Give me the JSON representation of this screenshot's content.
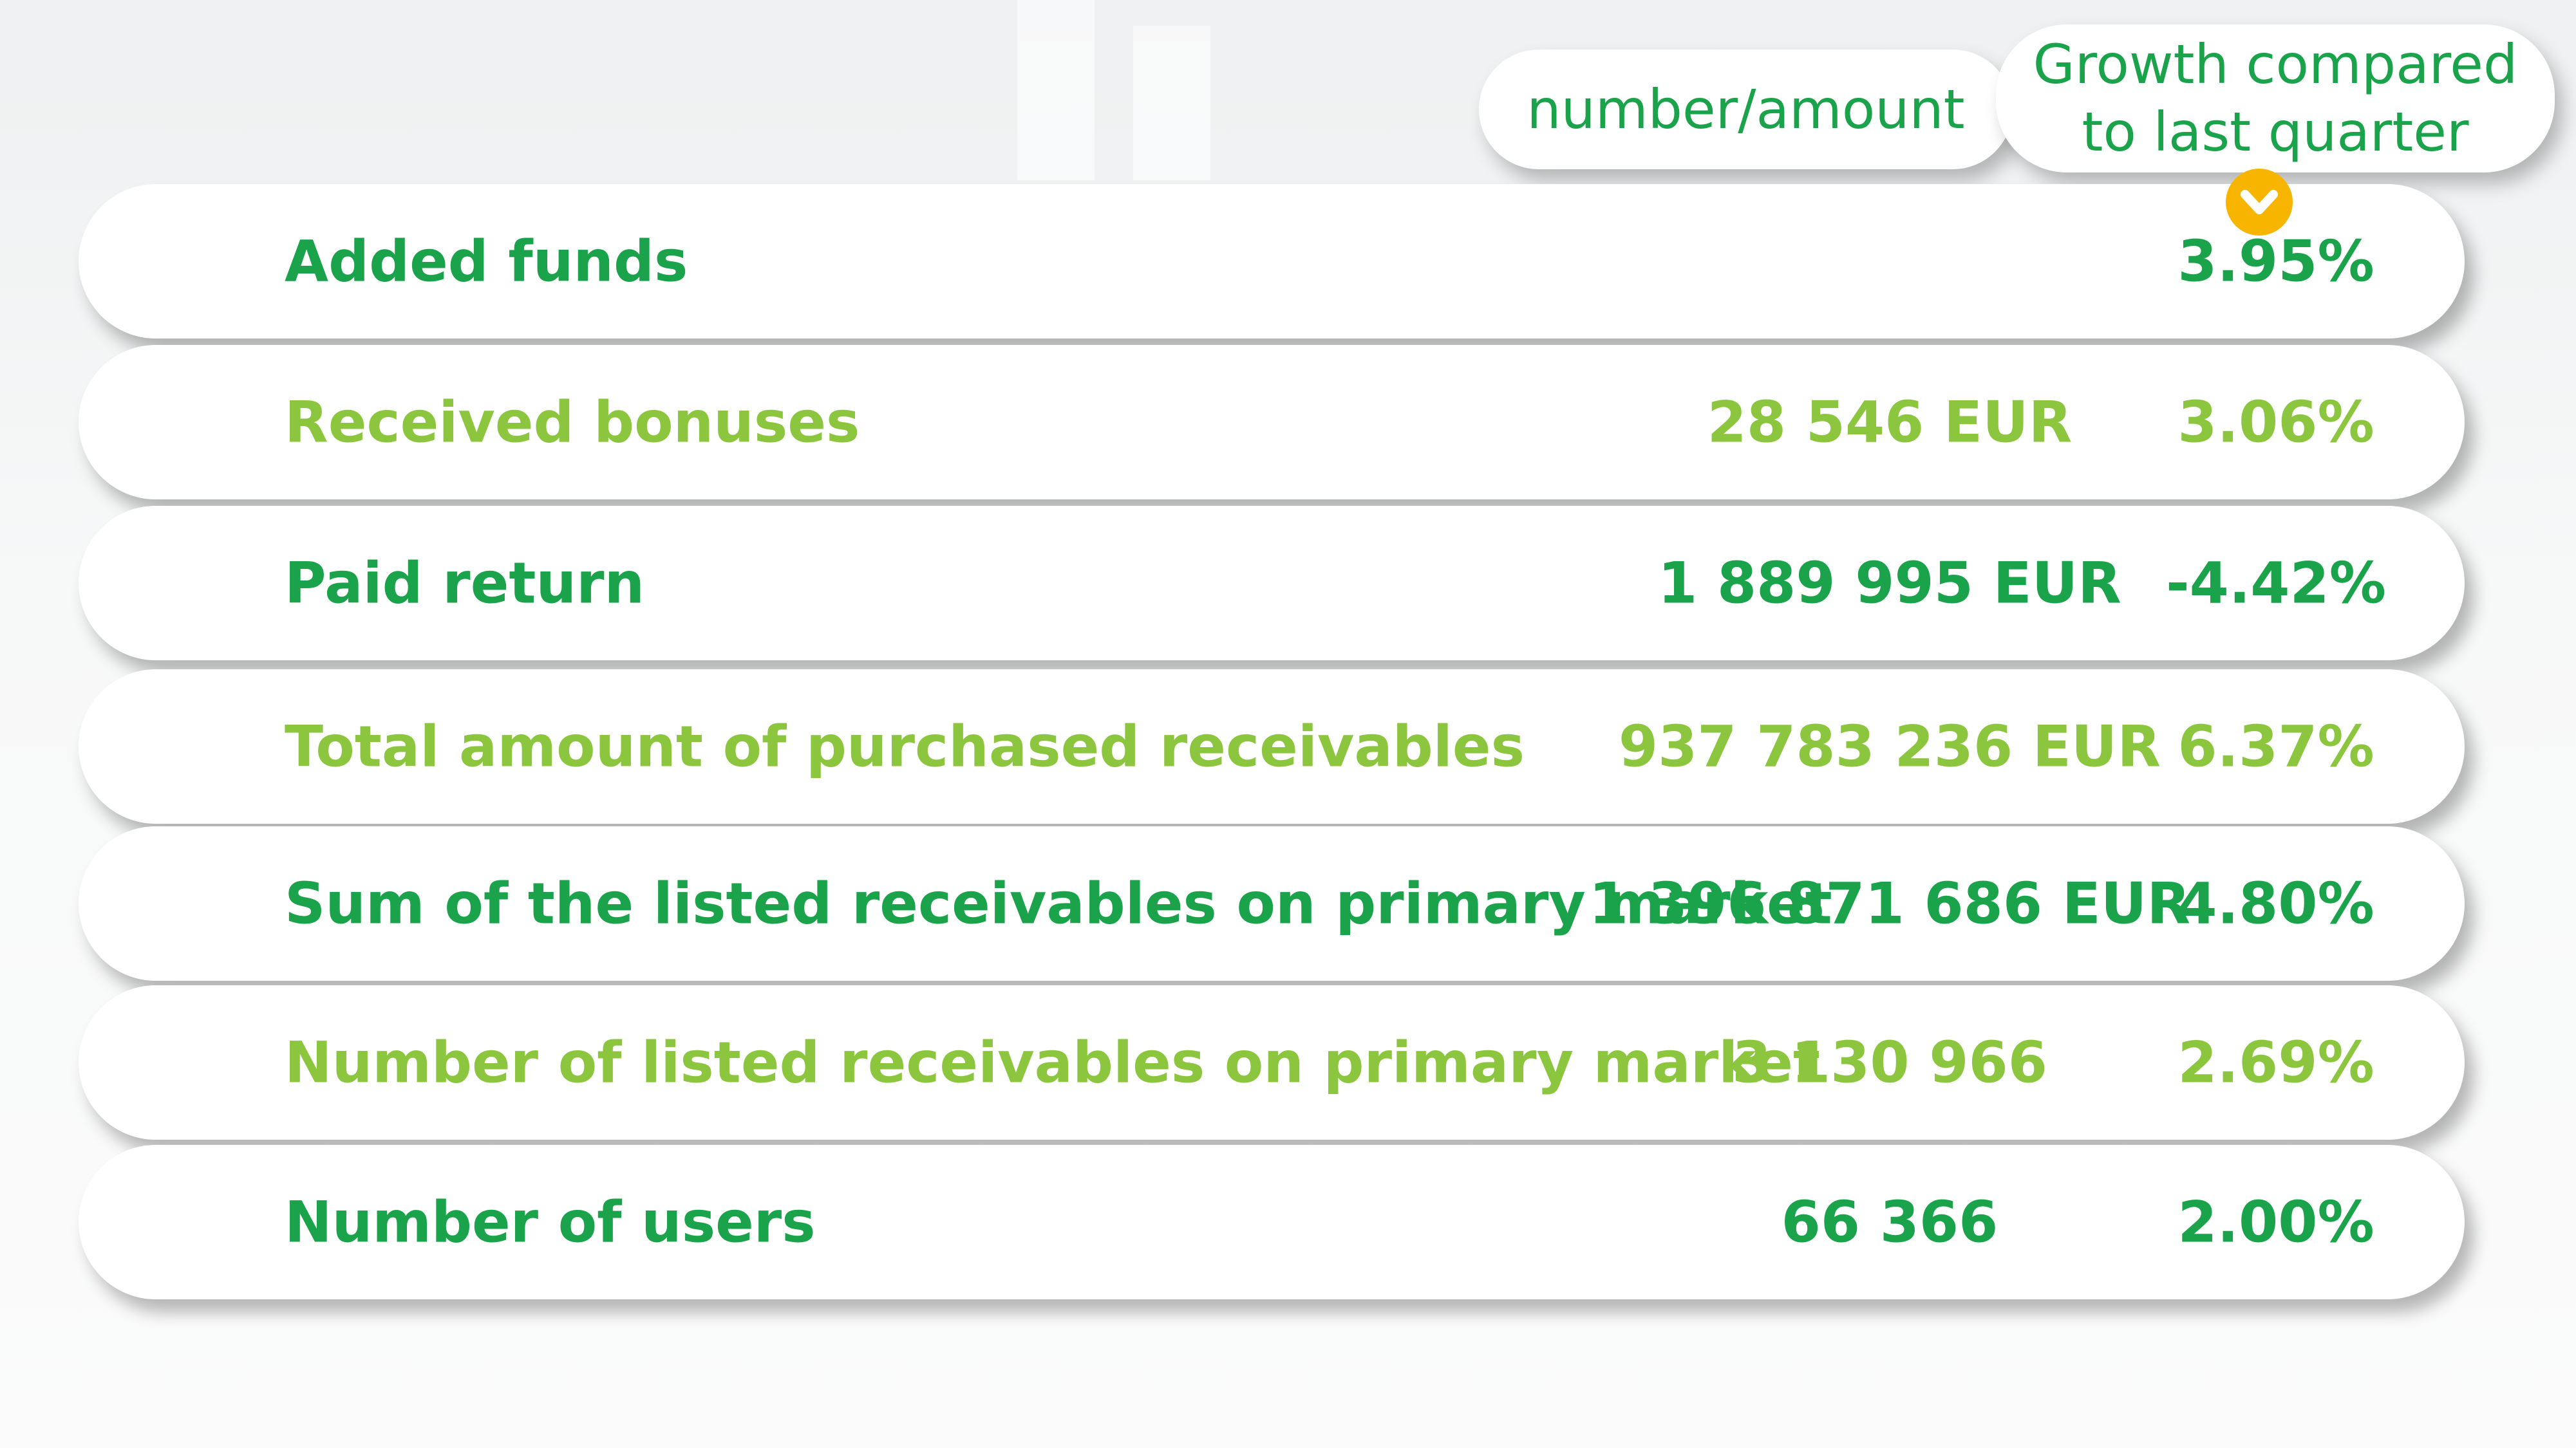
{
  "header": {
    "columns": [
      "number/amount",
      "Growth compared to last quarter"
    ]
  },
  "table": {
    "rows": [
      {
        "label": "Added funds",
        "growth": "3.95%"
      },
      {
        "label": "Received bonuses",
        "amount": "28 546 EUR",
        "growth": "3.06%"
      },
      {
        "label": "Paid return",
        "amount": "1 889 995 EUR",
        "growth": "-4.42%"
      },
      {
        "label": "Total amount of purchased receivables",
        "amount": "937 783 236 EUR",
        "growth": "6.37%"
      },
      {
        "label": "Sum of the listed receivables on primary market",
        "amount": "1 396 871 686 EUR",
        "growth": "4.80%"
      },
      {
        "label": "Number of listed receivables on primary market",
        "amount": "3 130 966",
        "growth": "2.69%"
      },
      {
        "label": "Number of users",
        "amount": "66 366",
        "growth": "2.00%"
      }
    ]
  }
}
